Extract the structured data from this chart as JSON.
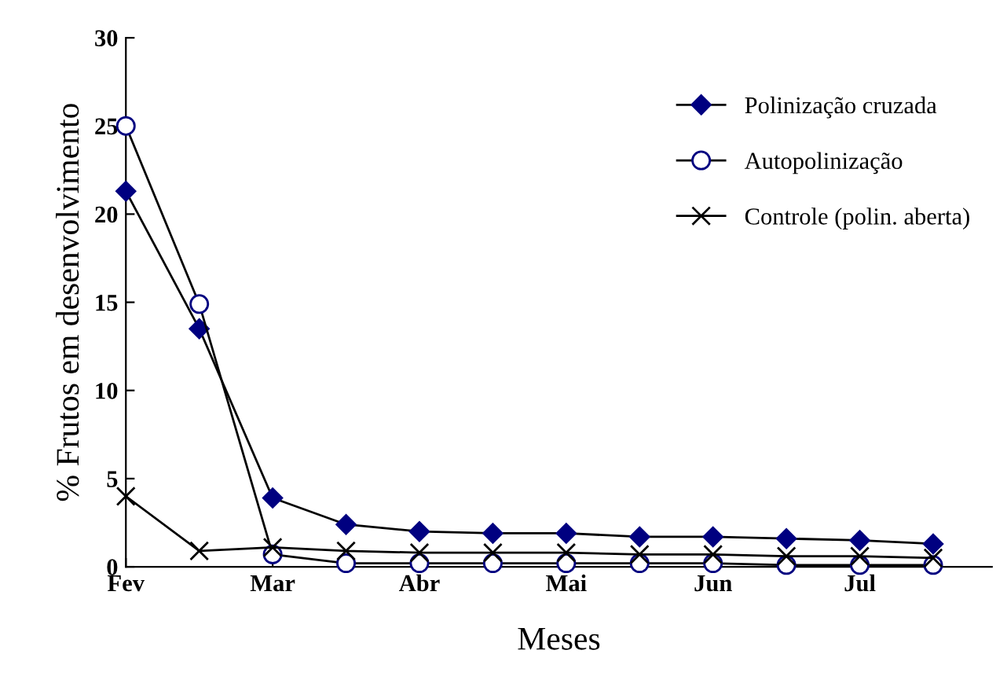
{
  "chart_data": {
    "type": "line",
    "xlabel": "Meses",
    "ylabel": "% Frutos em desenvolvimento",
    "categories": [
      "Fev",
      null,
      "Mar",
      null,
      "Abr",
      null,
      "Mai",
      null,
      "Jun",
      null,
      "Jul",
      null
    ],
    "ylim": [
      0,
      30
    ],
    "yticks": [
      0,
      5,
      10,
      15,
      20,
      25,
      30
    ],
    "grid": false,
    "legend": "top right",
    "line_style": "solid",
    "series": [
      {
        "name": "Polinização cruzada",
        "color": "#000080",
        "marker": "diamond",
        "values": [
          21.3,
          13.5,
          3.9,
          2.4,
          2.0,
          1.9,
          1.9,
          1.7,
          1.7,
          1.6,
          1.5,
          1.3
        ]
      },
      {
        "name": "Autopolinização",
        "color": "#000080",
        "marker": "circle",
        "values": [
          25,
          14.9,
          0.7,
          0.2,
          0.2,
          0.2,
          0.2,
          0.2,
          0.2,
          0.1,
          0.1,
          0.1
        ]
      },
      {
        "name": "Controle (polin. aberta)",
        "color": "#000000",
        "marker": "cross",
        "values": [
          4.0,
          0.9,
          1.1,
          0.9,
          0.8,
          0.8,
          0.8,
          0.7,
          0.7,
          0.6,
          0.6,
          0.5
        ]
      }
    ]
  }
}
